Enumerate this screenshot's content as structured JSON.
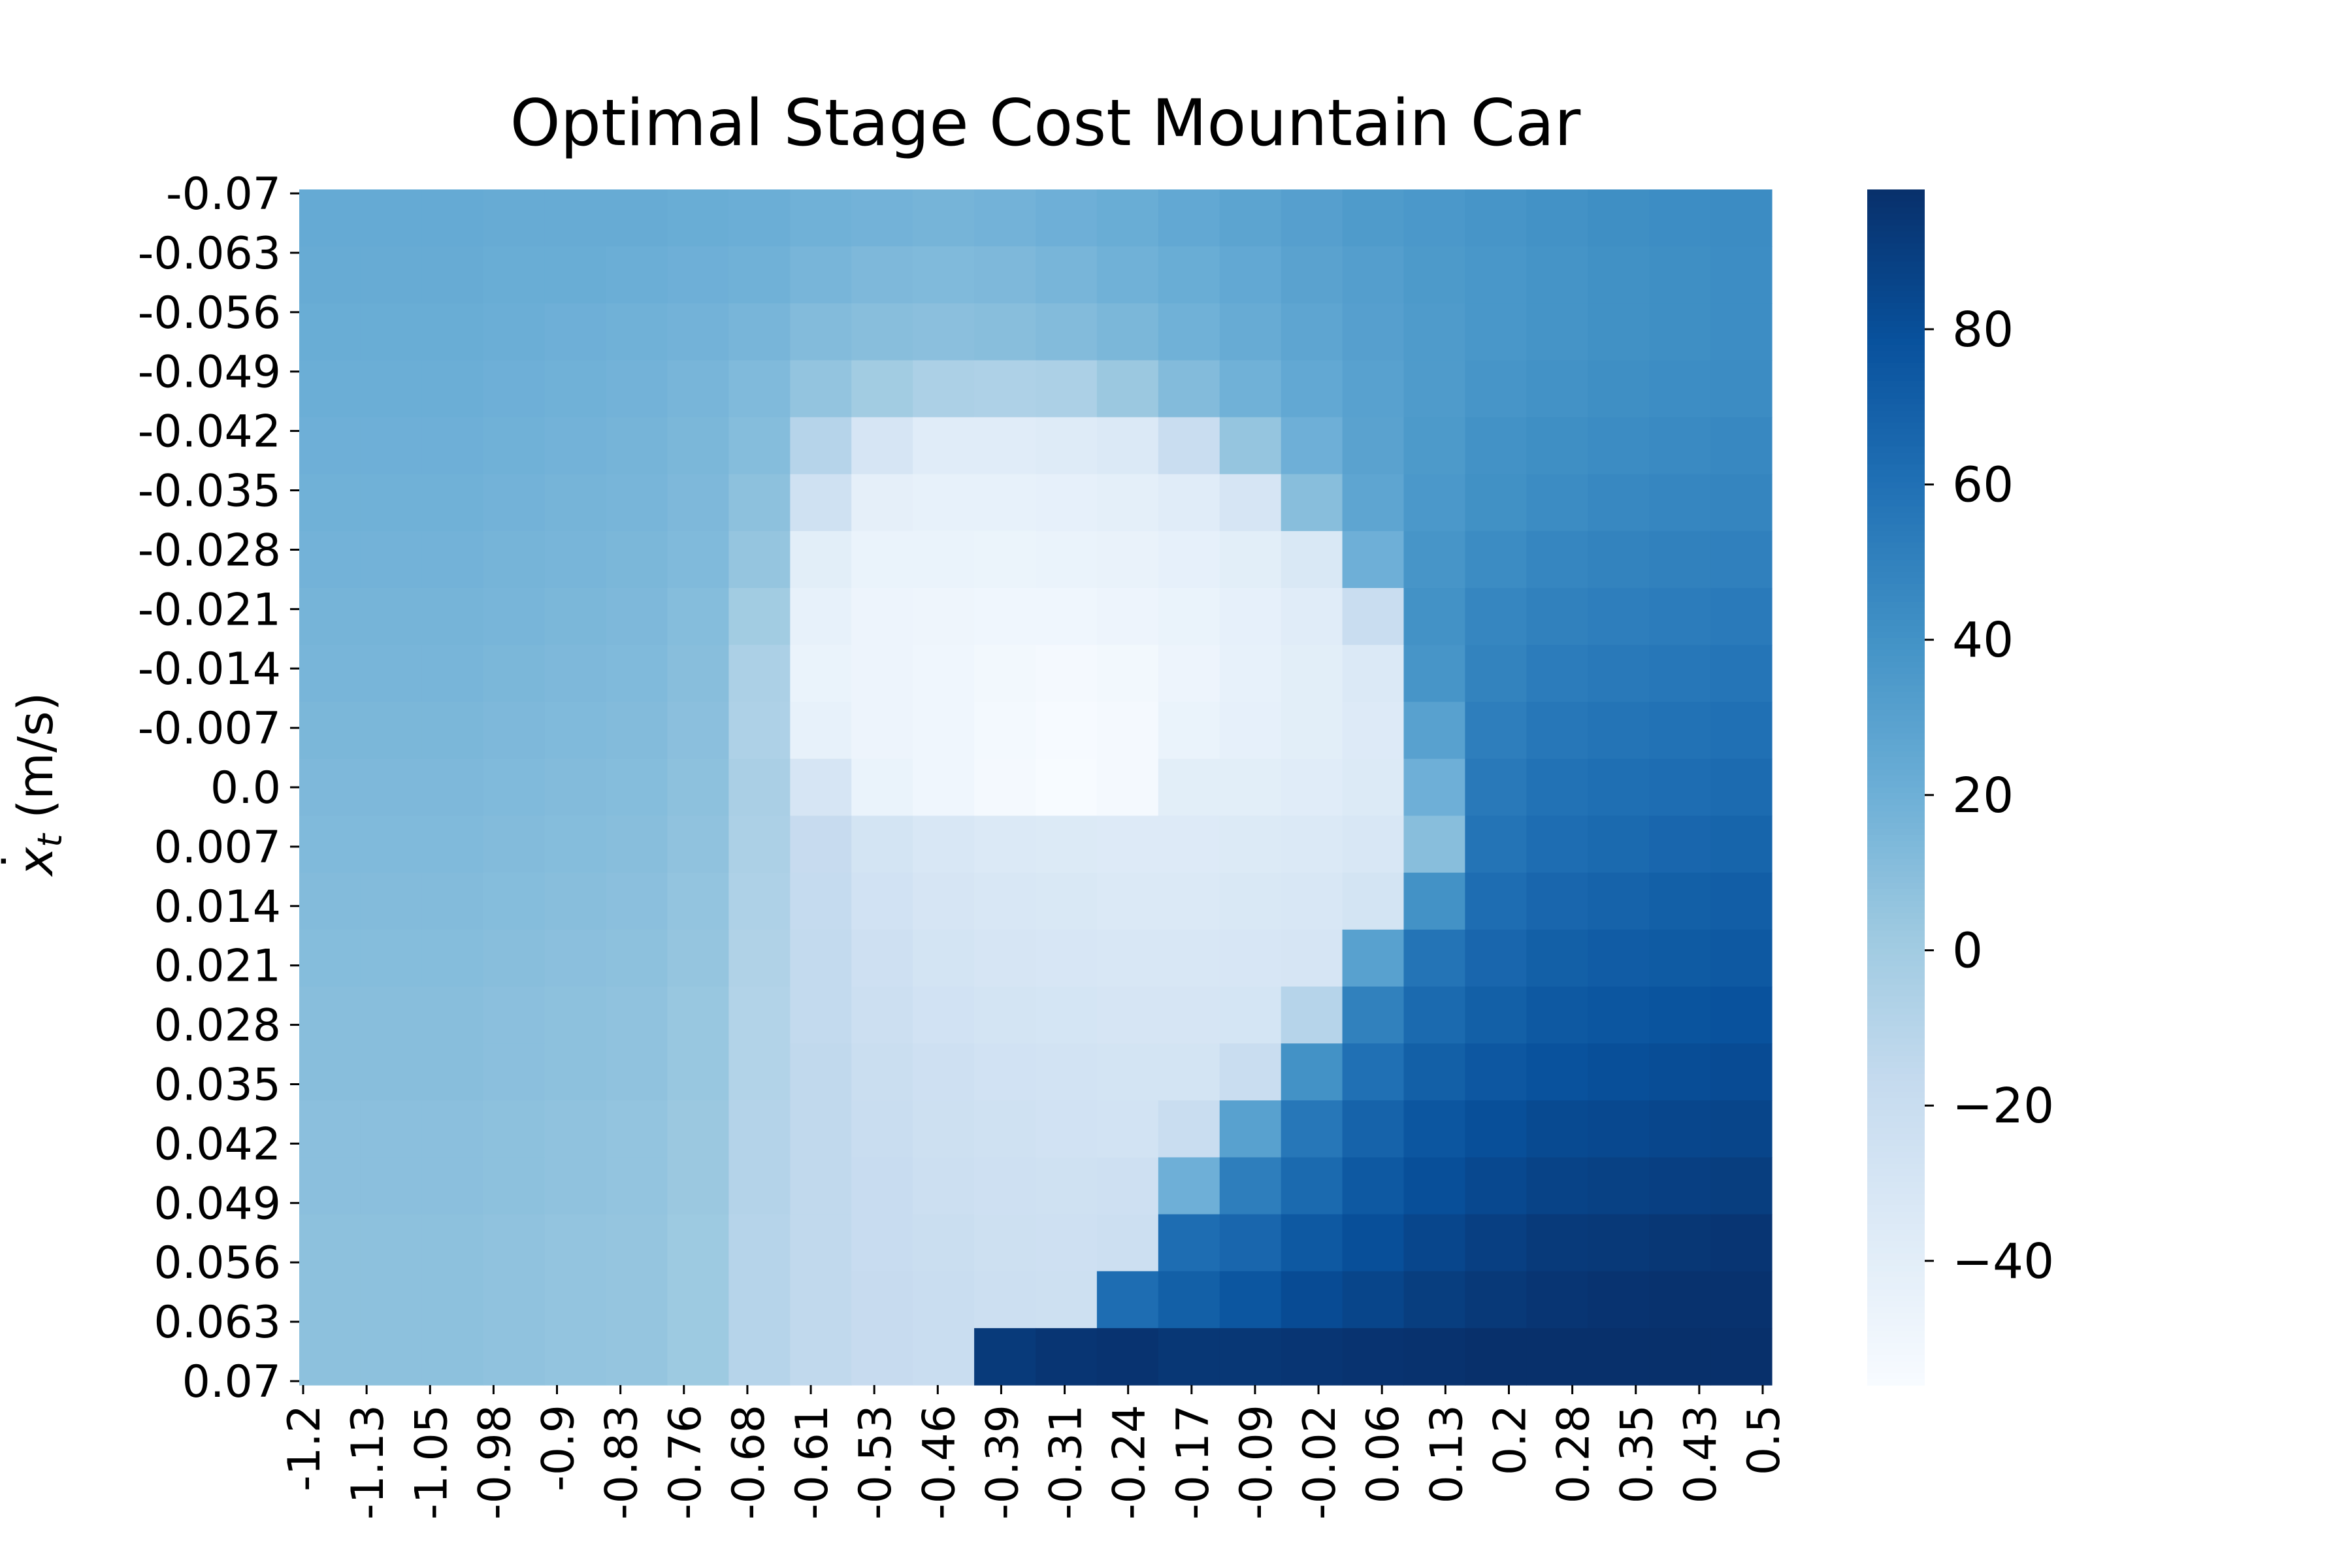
{
  "chart_data": {
    "type": "heatmap",
    "title": "Optimal Stage Cost Mountain Car",
    "xlabel": "",
    "ylabel": "ẋt (m/s)",
    "ylabel_parts": {
      "symbol": "x",
      "dot": "˙",
      "subscript": "t",
      "unit": " (m/s)"
    },
    "x_range": [
      -1.2,
      0.5
    ],
    "y_range": [
      -0.07,
      0.07
    ],
    "x_ticks": [
      "-1.2",
      "-1.13",
      "-1.05",
      "-0.98",
      "-0.9",
      "-0.83",
      "-0.76",
      "-0.68",
      "-0.61",
      "-0.53",
      "-0.46",
      "-0.39",
      "-0.31",
      "-0.24",
      "-0.17",
      "-0.09",
      "-0.02",
      "0.06",
      "0.13",
      "0.2",
      "0.28",
      "0.35",
      "0.43",
      "0.5"
    ],
    "y_ticks": [
      "-0.07",
      "-0.063",
      "-0.056",
      "-0.049",
      "-0.042",
      "-0.035",
      "-0.028",
      "-0.021",
      "-0.014",
      "-0.007",
      "0.0",
      "0.007",
      "0.014",
      "0.021",
      "0.028",
      "0.035",
      "0.042",
      "0.049",
      "0.056",
      "0.063",
      "0.07"
    ],
    "colorbar": {
      "colormap": "Blues",
      "range": [
        -56,
        98
      ],
      "ticks": [
        80,
        60,
        40,
        20,
        0,
        -20,
        -40
      ],
      "tick_labels": [
        "80",
        "60",
        "40",
        "20",
        "0",
        "−20",
        "−40"
      ]
    },
    "approx_values": {
      "description": "Approximate stage cost estimated from color, rows = velocity ticks (top to bottom), cols = position ticks (left to right)",
      "columns": [
        "-1.2",
        "-1.13",
        "-1.05",
        "-0.98",
        "-0.9",
        "-0.83",
        "-0.76",
        "-0.68",
        "-0.61",
        "-0.53",
        "-0.46",
        "-0.39",
        "-0.31",
        "-0.24",
        "-0.17",
        "-0.09",
        "-0.02",
        "0.06",
        "0.13",
        "0.2",
        "0.28",
        "0.35",
        "0.43",
        "0.5"
      ],
      "rows": [
        [
          "-0.07",
          [
            24,
            24,
            24,
            23,
            23,
            23,
            22,
            21,
            19,
            18,
            17,
            18,
            20,
            22,
            25,
            28,
            31,
            34,
            36,
            38,
            40,
            42,
            43,
            44
          ]
        ],
        [
          "-0.063",
          [
            23,
            23,
            23,
            22,
            22,
            21,
            20,
            19,
            16,
            14,
            13,
            14,
            16,
            19,
            22,
            25,
            29,
            32,
            35,
            37,
            39,
            41,
            42,
            43
          ]
        ],
        [
          "-0.056",
          [
            22,
            22,
            22,
            21,
            20,
            19,
            18,
            16,
            12,
            10,
            9,
            10,
            12,
            15,
            19,
            23,
            27,
            31,
            34,
            37,
            39,
            41,
            42,
            43
          ]
        ],
        [
          "-0.049",
          [
            21,
            21,
            21,
            20,
            19,
            18,
            16,
            13,
            6,
            0,
            -5,
            -6,
            -5,
            3,
            12,
            19,
            25,
            30,
            34,
            38,
            40,
            42,
            43,
            44
          ]
        ],
        [
          "-0.042",
          [
            20,
            20,
            20,
            19,
            18,
            17,
            15,
            11,
            -10,
            -30,
            -38,
            -38,
            -37,
            -34,
            -20,
            5,
            20,
            29,
            35,
            40,
            42,
            44,
            45,
            46
          ]
        ],
        [
          "-0.035",
          [
            19,
            19,
            19,
            18,
            17,
            16,
            14,
            8,
            -25,
            -42,
            -44,
            -44,
            -43,
            -41,
            -38,
            -30,
            10,
            27,
            36,
            41,
            44,
            46,
            47,
            48
          ]
        ],
        [
          "-0.028",
          [
            18,
            18,
            18,
            17,
            16,
            15,
            13,
            5,
            -40,
            -46,
            -46,
            -47,
            -46,
            -45,
            -43,
            -40,
            -33,
            20,
            38,
            44,
            47,
            49,
            50,
            51
          ]
        ],
        [
          "-0.021",
          [
            17,
            17,
            17,
            16,
            15,
            14,
            11,
            0,
            -44,
            -48,
            -49,
            -50,
            -50,
            -48,
            -46,
            -43,
            -38,
            -20,
            40,
            47,
            50,
            52,
            53,
            54
          ]
        ],
        [
          "-0.014",
          [
            16,
            16,
            16,
            15,
            14,
            13,
            10,
            -5,
            -46,
            -48,
            -50,
            -52,
            -54,
            -52,
            -48,
            -44,
            -40,
            -34,
            38,
            49,
            53,
            55,
            56,
            57
          ]
        ],
        [
          "-0.007",
          [
            15,
            15,
            15,
            14,
            13,
            12,
            9,
            -6,
            -44,
            -48,
            -50,
            -53,
            -55,
            -54,
            -46,
            -43,
            -40,
            -36,
            30,
            52,
            56,
            58,
            59,
            60
          ]
        ],
        [
          "0.0",
          [
            14,
            14,
            14,
            13,
            12,
            11,
            8,
            -4,
            -30,
            -46,
            -50,
            -54,
            -56,
            -54,
            -40,
            -40,
            -38,
            -35,
            20,
            55,
            59,
            61,
            62,
            63
          ]
        ],
        [
          "0.007",
          [
            13,
            13,
            13,
            12,
            11,
            10,
            7,
            -5,
            -18,
            -28,
            -32,
            -34,
            -35,
            -36,
            -36,
            -35,
            -34,
            -32,
            10,
            58,
            62,
            64,
            66,
            67
          ]
        ],
        [
          "0.014",
          [
            12,
            12,
            12,
            11,
            10,
            9,
            6,
            -6,
            -17,
            -26,
            -30,
            -32,
            -33,
            -34,
            -34,
            -33,
            -32,
            -28,
            40,
            62,
            66,
            68,
            70,
            71
          ]
        ],
        [
          "0.021",
          [
            11,
            11,
            11,
            10,
            9,
            8,
            5,
            -7,
            -16,
            -24,
            -28,
            -30,
            -31,
            -32,
            -32,
            -31,
            -30,
            30,
            58,
            66,
            70,
            72,
            73,
            74
          ]
        ],
        [
          "0.028",
          [
            10,
            10,
            10,
            9,
            8,
            7,
            4,
            -8,
            -16,
            -22,
            -26,
            -28,
            -29,
            -30,
            -30,
            -29,
            -10,
            50,
            64,
            70,
            74,
            76,
            77,
            78
          ]
        ],
        [
          "0.035",
          [
            10,
            10,
            10,
            9,
            8,
            7,
            4,
            -8,
            -15,
            -21,
            -24,
            -26,
            -27,
            -28,
            -28,
            -20,
            40,
            60,
            70,
            75,
            78,
            80,
            81,
            82
          ]
        ],
        [
          "0.042",
          [
            9,
            9,
            9,
            8,
            7,
            6,
            3,
            -9,
            -15,
            -20,
            -23,
            -25,
            -26,
            -27,
            -20,
            30,
            56,
            68,
            76,
            80,
            83,
            84,
            85,
            86
          ]
        ],
        [
          "0.049",
          [
            9,
            9,
            9,
            8,
            7,
            6,
            3,
            -9,
            -15,
            -19,
            -22,
            -24,
            -25,
            -24,
            20,
            52,
            64,
            74,
            80,
            84,
            87,
            88,
            89,
            90
          ]
        ],
        [
          "0.056",
          [
            8,
            8,
            8,
            7,
            6,
            5,
            2,
            -10,
            -15,
            -19,
            -21,
            -23,
            -24,
            -22,
            62,
            66,
            74,
            80,
            85,
            89,
            92,
            93,
            94,
            95
          ]
        ],
        [
          "0.063",
          [
            8,
            8,
            8,
            7,
            6,
            5,
            2,
            -10,
            -15,
            -18,
            -20,
            -22,
            -23,
            62,
            70,
            76,
            82,
            86,
            90,
            93,
            95,
            96,
            97,
            97
          ]
        ],
        [
          "0.07",
          [
            8,
            8,
            8,
            7,
            6,
            5,
            2,
            -10,
            -15,
            -18,
            -20,
            92,
            95,
            96,
            94,
            94,
            95,
            96,
            97,
            98,
            98,
            98,
            98,
            98
          ]
        ]
      ]
    },
    "grid": false,
    "legend": "none"
  }
}
